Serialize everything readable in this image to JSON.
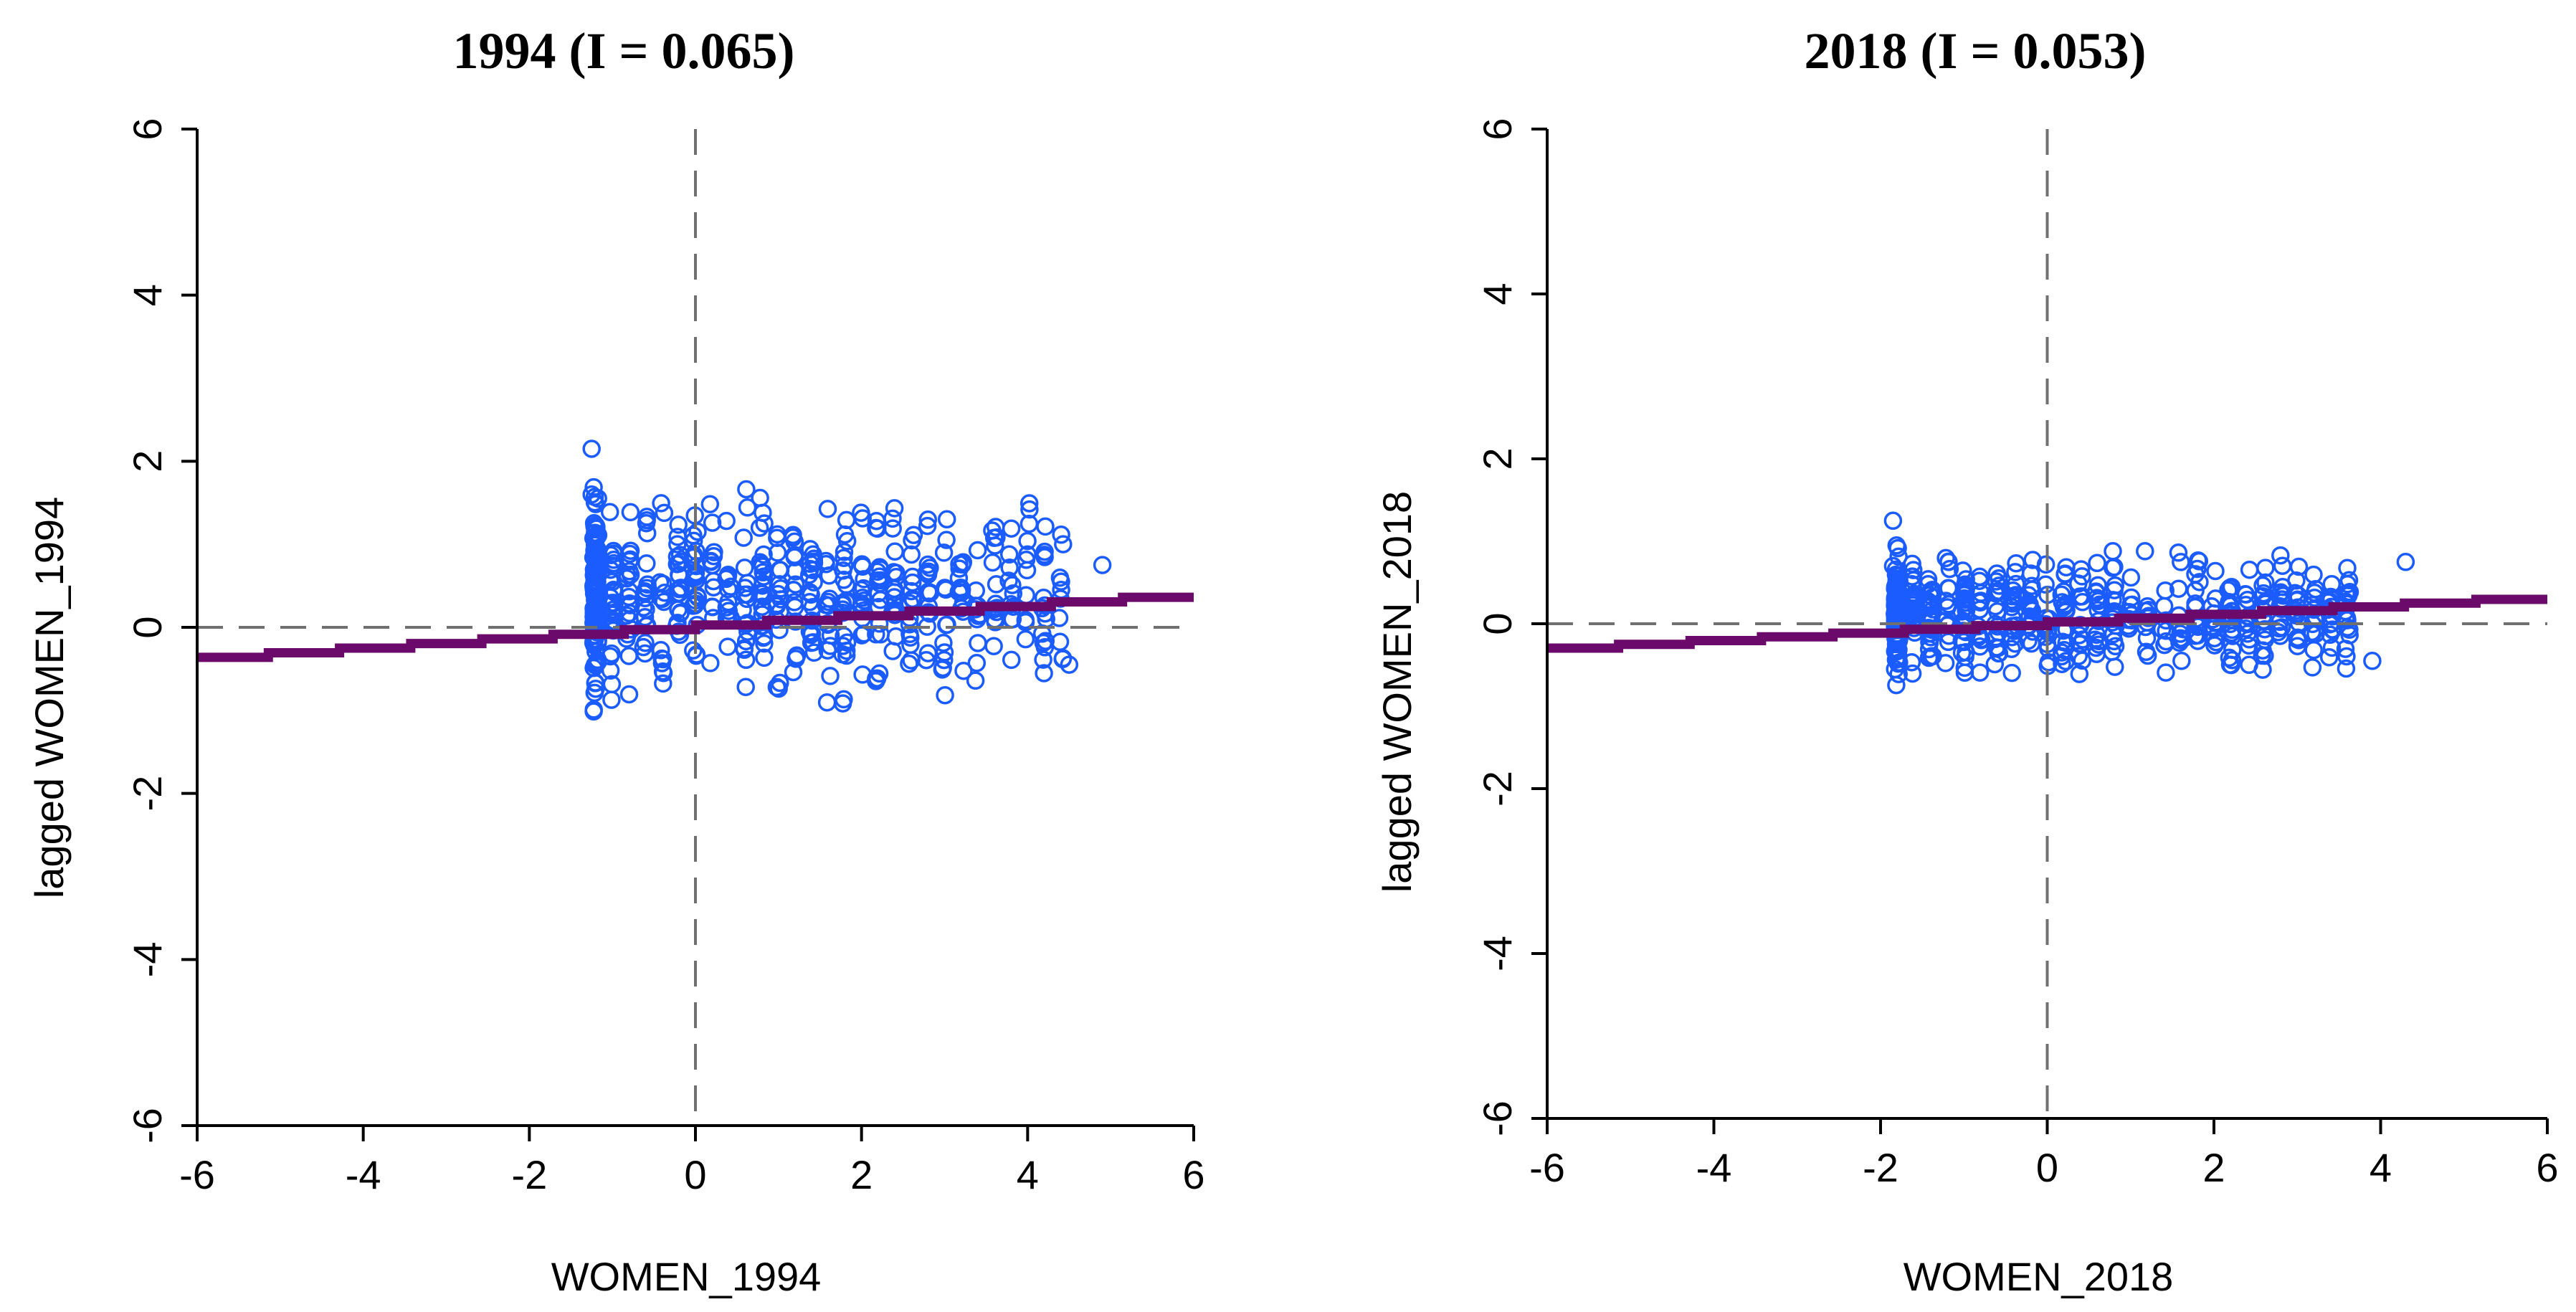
{
  "colors": {
    "points": "#1a5cff",
    "fit_line": "#6b0a6b",
    "reference_lines": "#707070",
    "axes": "#000000"
  },
  "chart_data": [
    {
      "type": "scatter",
      "title": "1994 (I = 0.065)",
      "xlabel": "WOMEN_1994",
      "ylabel": "lagged WOMEN_1994",
      "xlim": [
        -6,
        6
      ],
      "ylim": [
        -6,
        6
      ],
      "xticks": [
        "-6",
        "-4",
        "-2",
        "0",
        "2",
        "4",
        "6"
      ],
      "yticks": [
        "-6",
        "-4",
        "-2",
        "0",
        "2",
        "4",
        "6"
      ],
      "slope": 0.065,
      "reference_lines": {
        "x": 0,
        "y": 0
      },
      "point_x_range": [
        -1.3,
        5.0
      ],
      "point_y_range": [
        -1.3,
        2.2
      ]
    },
    {
      "type": "scatter",
      "title": "2018 (I = 0.053)",
      "xlabel": "WOMEN_2018",
      "ylabel": "lagged WOMEN_2018",
      "xlim": [
        -6,
        6
      ],
      "ylim": [
        -6,
        6
      ],
      "xticks": [
        "-6",
        "-4",
        "-2",
        "0",
        "2",
        "4",
        "6"
      ],
      "yticks": [
        "-6",
        "-4",
        "-2",
        "0",
        "2",
        "4",
        "6"
      ],
      "slope": 0.053,
      "reference_lines": {
        "x": 0,
        "y": 0
      },
      "point_x_range": [
        -1.9,
        4.4
      ],
      "point_y_range": [
        -1.0,
        1.3
      ]
    }
  ]
}
